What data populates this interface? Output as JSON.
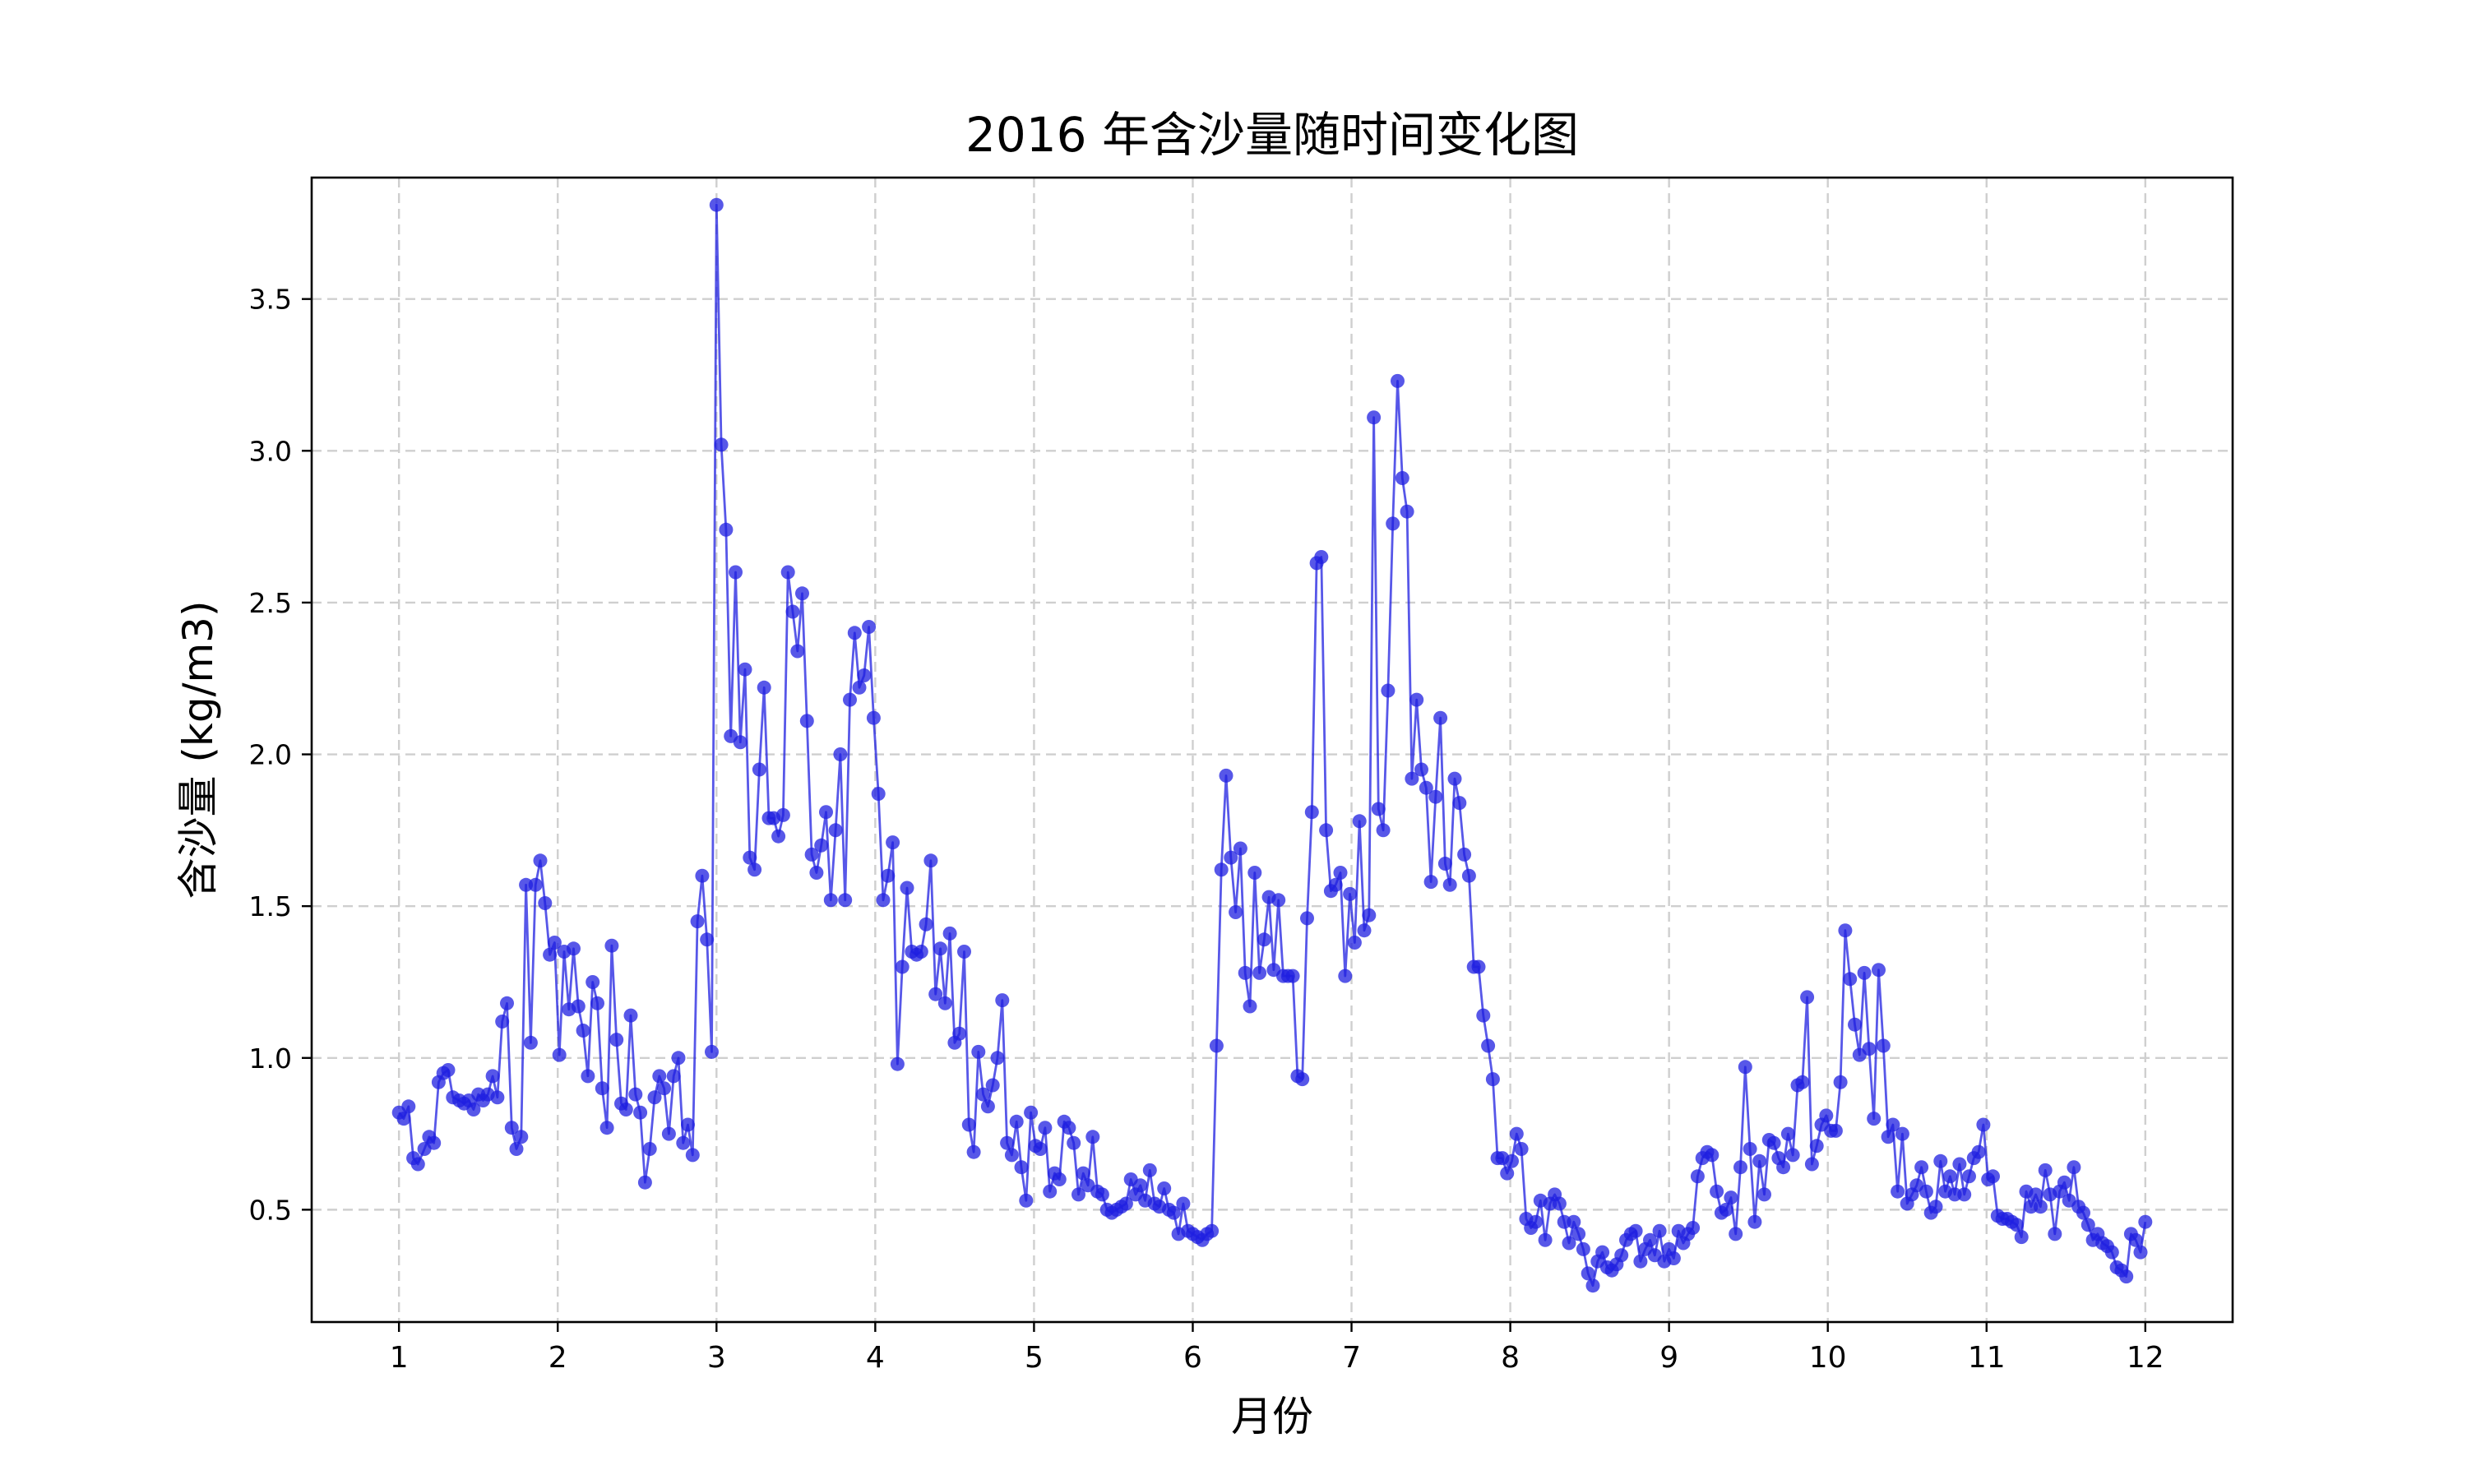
{
  "chart_data": {
    "type": "line",
    "title": "2016 年含沙量随时间变化图",
    "xlabel": "月份",
    "ylabel": "含沙量 (kg/m3)",
    "xlim": [
      0.45,
      12.55
    ],
    "ylim": [
      0.13,
      3.9
    ],
    "xticks": [
      1,
      2,
      3,
      4,
      5,
      6,
      7,
      8,
      9,
      10,
      11,
      12
    ],
    "yticks": [
      0.5,
      1.0,
      1.5,
      2.0,
      2.5,
      3.0,
      3.5
    ],
    "ytick_labels": [
      "0.5",
      "1.0",
      "1.5",
      "2.0",
      "2.5",
      "3.0",
      "3.5"
    ],
    "grid": true,
    "marker": "circle",
    "color": "#1f1fe0",
    "series": [
      {
        "x": [
          1.0,
          1.03,
          1.06,
          1.09,
          1.12,
          1.16,
          1.19,
          1.22,
          1.25,
          1.28,
          1.31,
          1.34,
          1.38,
          1.41,
          1.44,
          1.47,
          1.5,
          1.53,
          1.56,
          1.59,
          1.62,
          1.65,
          1.68,
          1.71,
          1.74,
          1.77,
          1.8,
          1.83,
          1.86,
          1.89,
          1.92,
          1.95,
          1.98,
          2.01,
          2.04,
          2.07,
          2.1,
          2.13,
          2.16,
          2.19,
          2.22,
          2.25,
          2.28,
          2.31,
          2.34,
          2.37,
          2.4,
          2.43,
          2.46,
          2.49,
          2.52,
          2.55,
          2.58,
          2.61,
          2.64,
          2.67,
          2.7,
          2.73,
          2.76,
          2.79,
          2.82,
          2.85,
          2.88,
          2.91,
          2.94,
          2.97,
          3.0,
          3.03,
          3.06,
          3.09,
          3.12,
          3.15,
          3.18,
          3.21,
          3.24,
          3.27,
          3.3,
          3.33,
          3.36,
          3.39,
          3.42,
          3.45,
          3.48,
          3.51,
          3.54,
          3.57,
          3.6,
          3.63,
          3.66,
          3.69,
          3.72,
          3.75,
          3.78,
          3.81,
          3.84,
          3.87,
          3.9,
          3.93,
          3.96,
          3.99,
          4.02,
          4.05,
          4.08,
          4.11,
          4.14,
          4.17,
          4.2,
          4.23,
          4.26,
          4.29,
          4.32,
          4.35,
          4.38,
          4.41,
          4.44,
          4.47,
          4.5,
          4.53,
          4.56,
          4.59,
          4.62,
          4.65,
          4.68,
          4.71,
          4.74,
          4.77,
          4.8,
          4.83,
          4.86,
          4.89,
          4.92,
          4.95,
          4.98,
          5.01,
          5.04,
          5.07,
          5.1,
          5.13,
          5.16,
          5.19,
          5.22,
          5.25,
          5.28,
          5.31,
          5.34,
          5.37,
          5.4,
          5.43,
          5.46,
          5.49,
          5.52,
          5.55,
          5.58,
          5.61,
          5.64,
          5.67,
          5.7,
          5.73,
          5.76,
          5.79,
          5.82,
          5.85,
          5.88,
          5.91,
          5.94,
          5.97,
          6.0,
          6.03,
          6.06,
          6.09,
          6.12,
          6.15,
          6.18,
          6.21,
          6.24,
          6.27,
          6.3,
          6.33,
          6.36,
          6.39,
          6.42,
          6.45,
          6.48,
          6.51,
          6.54,
          6.57,
          6.6,
          6.63,
          6.66,
          6.69,
          6.72,
          6.75,
          6.78,
          6.81,
          6.84,
          6.87,
          6.9,
          6.93,
          6.96,
          6.99,
          7.02,
          7.05,
          7.08,
          7.11,
          7.14,
          7.17,
          7.2,
          7.23,
          7.26,
          7.29,
          7.32,
          7.35,
          7.38,
          7.41,
          7.44,
          7.47,
          7.5,
          7.53,
          7.56,
          7.59,
          7.62,
          7.65,
          7.68,
          7.71,
          7.74,
          7.77,
          7.8,
          7.83,
          7.86,
          7.89,
          7.92,
          7.95,
          7.98,
          8.01,
          8.04,
          8.07,
          8.1,
          8.13,
          8.16,
          8.19,
          8.22,
          8.25,
          8.28,
          8.31,
          8.34,
          8.37,
          8.4,
          8.43,
          8.46,
          8.49,
          8.52,
          8.55,
          8.58,
          8.61,
          8.64,
          8.67,
          8.7,
          8.73,
          8.76,
          8.79,
          8.82,
          8.85,
          8.88,
          8.91,
          8.94,
          8.97,
          9.0,
          9.03,
          9.06,
          9.09,
          9.12,
          9.15,
          9.18,
          9.21,
          9.24,
          9.27,
          9.3,
          9.33,
          9.36,
          9.39,
          9.42,
          9.45,
          9.48,
          9.51,
          9.54,
          9.57,
          9.6,
          9.63,
          9.66,
          9.69,
          9.72,
          9.75,
          9.78,
          9.81,
          9.84,
          9.87,
          9.9,
          9.93,
          9.96,
          9.99,
          10.02,
          10.05,
          10.08,
          10.11,
          10.14,
          10.17,
          10.2,
          10.23,
          10.26,
          10.29,
          10.32,
          10.35,
          10.38,
          10.41,
          10.44,
          10.47,
          10.5,
          10.53,
          10.56,
          10.59,
          10.62,
          10.65,
          10.68,
          10.71,
          10.74,
          10.77,
          10.8,
          10.83,
          10.86,
          10.89,
          10.92,
          10.95,
          10.98,
          11.01,
          11.04,
          11.07,
          11.1,
          11.13,
          11.16,
          11.19,
          11.22,
          11.25,
          11.28,
          11.31,
          11.34,
          11.37,
          11.4,
          11.43,
          11.46,
          11.49,
          11.52,
          11.55,
          11.58,
          11.61,
          11.64,
          11.67,
          11.7,
          11.73,
          11.76,
          11.79,
          11.82,
          11.85,
          11.88,
          11.91,
          11.94,
          11.97,
          12.0
        ],
        "y": [
          0.82,
          0.8,
          0.84,
          0.67,
          0.65,
          0.7,
          0.74,
          0.72,
          0.92,
          0.95,
          0.96,
          0.87,
          0.86,
          0.85,
          0.86,
          0.83,
          0.88,
          0.86,
          0.88,
          0.94,
          0.87,
          1.12,
          1.18,
          0.77,
          0.7,
          0.74,
          1.57,
          1.05,
          1.57,
          1.65,
          1.51,
          1.34,
          1.38,
          1.01,
          1.35,
          1.16,
          1.36,
          1.17,
          1.09,
          0.94,
          1.25,
          1.18,
          0.9,
          0.77,
          1.37,
          1.06,
          0.85,
          0.83,
          1.14,
          0.88,
          0.82,
          0.59,
          0.7,
          0.87,
          0.94,
          0.9,
          0.75,
          0.94,
          1.0,
          0.72,
          0.78,
          0.68,
          1.45,
          1.6,
          1.39,
          1.02,
          3.81,
          3.02,
          2.74,
          2.06,
          2.6,
          2.04,
          2.28,
          1.66,
          1.62,
          1.95,
          2.22,
          1.79,
          1.79,
          1.73,
          1.8,
          2.6,
          2.47,
          2.34,
          2.53,
          2.11,
          1.67,
          1.61,
          1.7,
          1.81,
          1.52,
          1.75,
          2.0,
          1.52,
          2.18,
          2.4,
          2.22,
          2.26,
          2.42,
          2.12,
          1.87,
          1.52,
          1.6,
          1.71,
          0.98,
          1.3,
          1.56,
          1.35,
          1.34,
          1.35,
          1.44,
          1.65,
          1.21,
          1.36,
          1.18,
          1.41,
          1.05,
          1.08,
          1.35,
          0.78,
          0.69,
          1.02,
          0.88,
          0.84,
          0.91,
          1.0,
          1.19,
          0.72,
          0.68,
          0.79,
          0.64,
          0.53,
          0.82,
          0.71,
          0.7,
          0.77,
          0.56,
          0.62,
          0.6,
          0.79,
          0.77,
          0.72,
          0.55,
          0.62,
          0.58,
          0.74,
          0.56,
          0.55,
          0.5,
          0.49,
          0.5,
          0.51,
          0.52,
          0.6,
          0.55,
          0.58,
          0.53,
          0.63,
          0.52,
          0.51,
          0.57,
          0.5,
          0.49,
          0.42,
          0.52,
          0.43,
          0.42,
          0.41,
          0.4,
          0.42,
          0.43,
          1.04,
          1.62,
          1.93,
          1.66,
          1.48,
          1.69,
          1.28,
          1.17,
          1.61,
          1.28,
          1.39,
          1.53,
          1.29,
          1.52,
          1.27,
          1.27,
          1.27,
          0.94,
          0.93,
          1.46,
          1.81,
          2.63,
          2.65,
          1.75,
          1.55,
          1.57,
          1.61,
          1.27,
          1.54,
          1.38,
          1.78,
          1.42,
          1.47,
          3.11,
          1.82,
          1.75,
          2.21,
          2.76,
          3.23,
          2.91,
          2.8,
          1.92,
          2.18,
          1.95,
          1.89,
          1.58,
          1.86,
          2.12,
          1.64,
          1.57,
          1.92,
          1.84,
          1.67,
          1.6,
          1.3,
          1.3,
          1.14,
          1.04,
          0.93,
          0.67,
          0.67,
          0.62,
          0.66,
          0.75,
          0.7,
          0.47,
          0.44,
          0.46,
          0.53,
          0.4,
          0.52,
          0.55,
          0.52,
          0.46,
          0.39,
          0.46,
          0.42,
          0.37,
          0.29,
          0.25,
          0.33,
          0.36,
          0.31,
          0.3,
          0.32,
          0.35,
          0.4,
          0.42,
          0.43,
          0.33,
          0.37,
          0.4,
          0.35,
          0.43,
          0.33,
          0.37,
          0.34,
          0.43,
          0.39,
          0.42,
          0.44,
          0.61,
          0.67,
          0.69,
          0.68,
          0.56,
          0.49,
          0.5,
          0.54,
          0.42,
          0.64,
          0.97,
          0.7,
          0.46,
          0.66,
          0.55,
          0.73,
          0.72,
          0.67,
          0.64,
          0.75,
          0.68,
          0.91,
          0.92,
          1.2,
          0.65,
          0.71,
          0.78,
          0.81,
          0.76,
          0.76,
          0.92,
          1.42,
          1.26,
          1.11,
          1.01,
          1.28,
          1.03,
          0.8,
          1.29,
          1.04,
          0.74,
          0.78,
          0.56,
          0.75,
          0.52,
          0.55,
          0.58,
          0.64,
          0.56,
          0.49,
          0.51,
          0.66,
          0.56,
          0.61,
          0.55,
          0.65,
          0.55,
          0.61,
          0.67,
          0.69,
          0.78,
          0.6,
          0.61,
          0.48,
          0.47,
          0.47,
          0.46,
          0.45,
          0.41,
          0.56,
          0.51,
          0.55,
          0.51,
          0.63,
          0.55,
          0.42,
          0.56,
          0.59,
          0.53,
          0.64,
          0.51,
          0.49,
          0.45,
          0.4,
          0.42,
          0.39,
          0.38,
          0.36,
          0.31,
          0.3,
          0.28,
          0.42,
          0.4,
          0.36,
          0.46
        ]
      }
    ]
  }
}
